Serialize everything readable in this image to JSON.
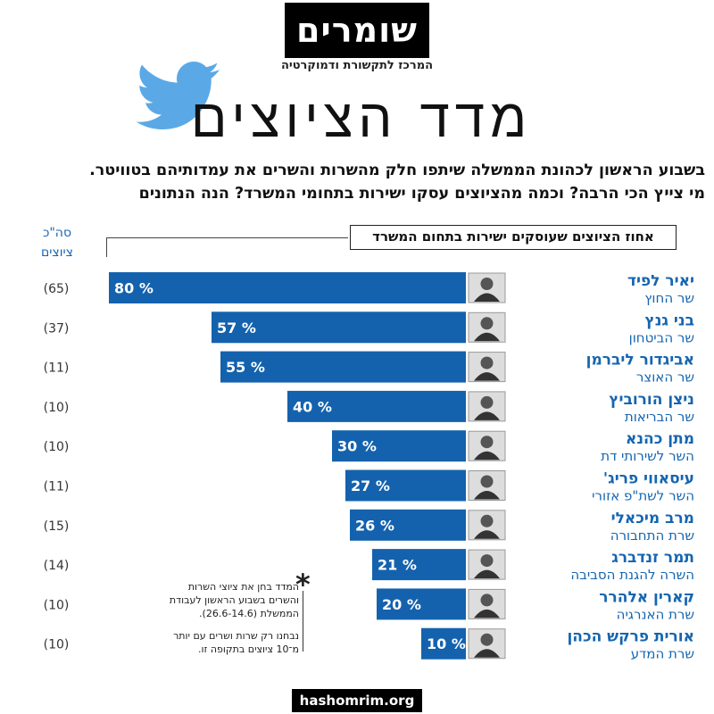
{
  "header": {
    "logo_text": "שומרים",
    "logo_subtitle": "המרכז לתקשורת ודמוקרטיה",
    "title": "מדד הציוצים"
  },
  "intro": {
    "line1": "בשבוע הראשון לכהונת הממשלה שיתפו חלק מהשרות והשרים את עמדותיהם בטוויטר.",
    "line2": "מי צייץ הכי הרבה? וכמה מהציוצים עסקו ישירות בתחומי המשרד? הנה הנתונים"
  },
  "column_header": {
    "line1": "סה\"כ",
    "line2": "ציוצים"
  },
  "legend_label": "אחוז הציוצים שעוסקים ישירות בתחום המשרד",
  "notes": {
    "note1": "המדד בחן את ציוצי השרות והשרים בשבוע הראשון לעבודת הממשלת (26.6-14.6).",
    "note2": "נבחנו רק שרות ושרים עם יותר מ־10 ציוצים בתקופה זו.",
    "star": "*"
  },
  "footer": {
    "url": "hashomrim.org"
  },
  "colors": {
    "bar": "#1462ad",
    "accent": "#1565b0",
    "photo_bg": "#dddddd"
  },
  "chart_data": {
    "type": "bar",
    "orientation": "horizontal",
    "value_unit": "%",
    "xlim": [
      0,
      100
    ],
    "rows": [
      {
        "name": "יאיר לפיד",
        "role": "שר החוץ",
        "value": 80,
        "total": 65
      },
      {
        "name": "בני גנץ",
        "role": "שר הביטחון",
        "value": 57,
        "total": 37
      },
      {
        "name": "אביגדור ליברמן",
        "role": "שר האוצר",
        "value": 55,
        "total": 11
      },
      {
        "name": "ניצן הורוביץ",
        "role": "שר הבריאות",
        "value": 40,
        "total": 10
      },
      {
        "name": "מתן כהנא",
        "role": "השר לשירותי דת",
        "value": 30,
        "total": 10
      },
      {
        "name": "עיסאווי פריג'",
        "role": "השר לשת\"פ אזורי",
        "value": 27,
        "total": 11
      },
      {
        "name": "מרב מיכאלי",
        "role": "שרת התחבורה",
        "value": 26,
        "total": 15
      },
      {
        "name": "תמר זנדברג",
        "role": "השרה להגנת הסביבה",
        "value": 21,
        "total": 14
      },
      {
        "name": "קארין אלהרר",
        "role": "שרת האנרגיה",
        "value": 20,
        "total": 10
      },
      {
        "name": "אורית פרקש הכהן",
        "role": "שרת המדע",
        "value": 10,
        "total": 10
      }
    ]
  }
}
